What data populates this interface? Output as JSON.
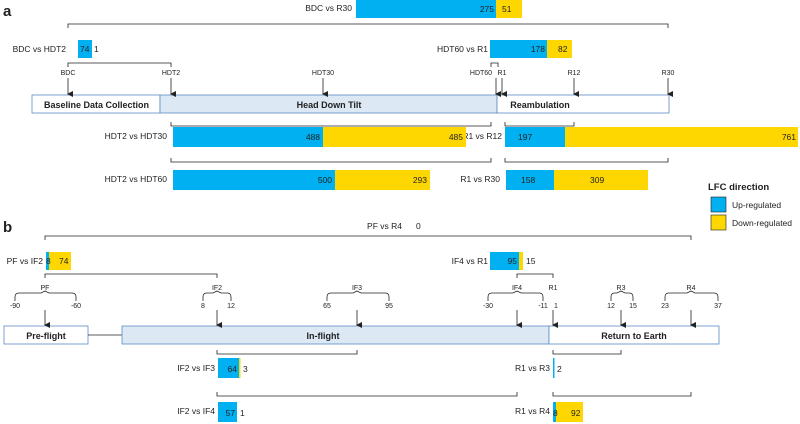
{
  "panel_a": {
    "letter": "a",
    "phases": [
      "Baseline Data Collection",
      "Head Down Tilt",
      "Reambulation"
    ],
    "timepoints": [
      "BDC",
      "HDT2",
      "HDT30",
      "HDT60",
      "R1",
      "R12",
      "R30"
    ],
    "comparisons": [
      {
        "label": "BDC vs R30",
        "up": 275,
        "down": 51
      },
      {
        "label": "BDC vs HDT2",
        "up": 74,
        "down": 1
      },
      {
        "label": "HDT60 vs R1",
        "up": 178,
        "down": 82
      },
      {
        "label": "HDT2 vs HDT30",
        "up": 488,
        "down": 485
      },
      {
        "label": "R1 vs R12",
        "up": 197,
        "down": 761
      },
      {
        "label": "HDT2 vs HDT60",
        "up": 500,
        "down": 293
      },
      {
        "label": "R1 vs R30",
        "up": 158,
        "down": 309
      }
    ]
  },
  "panel_b": {
    "letter": "b",
    "phases": [
      "Pre-flight",
      "In-flight",
      "Return to Earth"
    ],
    "timepoints": [
      "PF",
      "IF2",
      "IF3",
      "IF4",
      "R1",
      "R3",
      "R4"
    ],
    "days": [
      "-90",
      "-60",
      "8",
      "12",
      "65",
      "95",
      "-30",
      "-11",
      "1",
      "12",
      "15",
      "23",
      "37"
    ],
    "comparisons": [
      {
        "label": "PF vs R4",
        "up": 0,
        "down": null
      },
      {
        "label": "PF vs IF2",
        "up": 8,
        "down": 74
      },
      {
        "label": "IF4 vs R1",
        "up": 95,
        "down": 15
      },
      {
        "label": "IF2 vs IF3",
        "up": 64,
        "down": 3
      },
      {
        "label": "R1 vs R3",
        "up": 2,
        "down": null
      },
      {
        "label": "IF2 vs IF4",
        "up": 57,
        "down": 1
      },
      {
        "label": "R1 vs R4",
        "up": 8,
        "down": 92
      }
    ]
  },
  "legend": {
    "title": "LFC direction",
    "up_label": "Up-regulated",
    "down_label": "Down-regulated",
    "up_color": "#00b0f0",
    "down_color": "#ffd700"
  },
  "colors": {
    "phase_fill": "#dce9f5",
    "phase_stroke": "#5b8bc4"
  }
}
